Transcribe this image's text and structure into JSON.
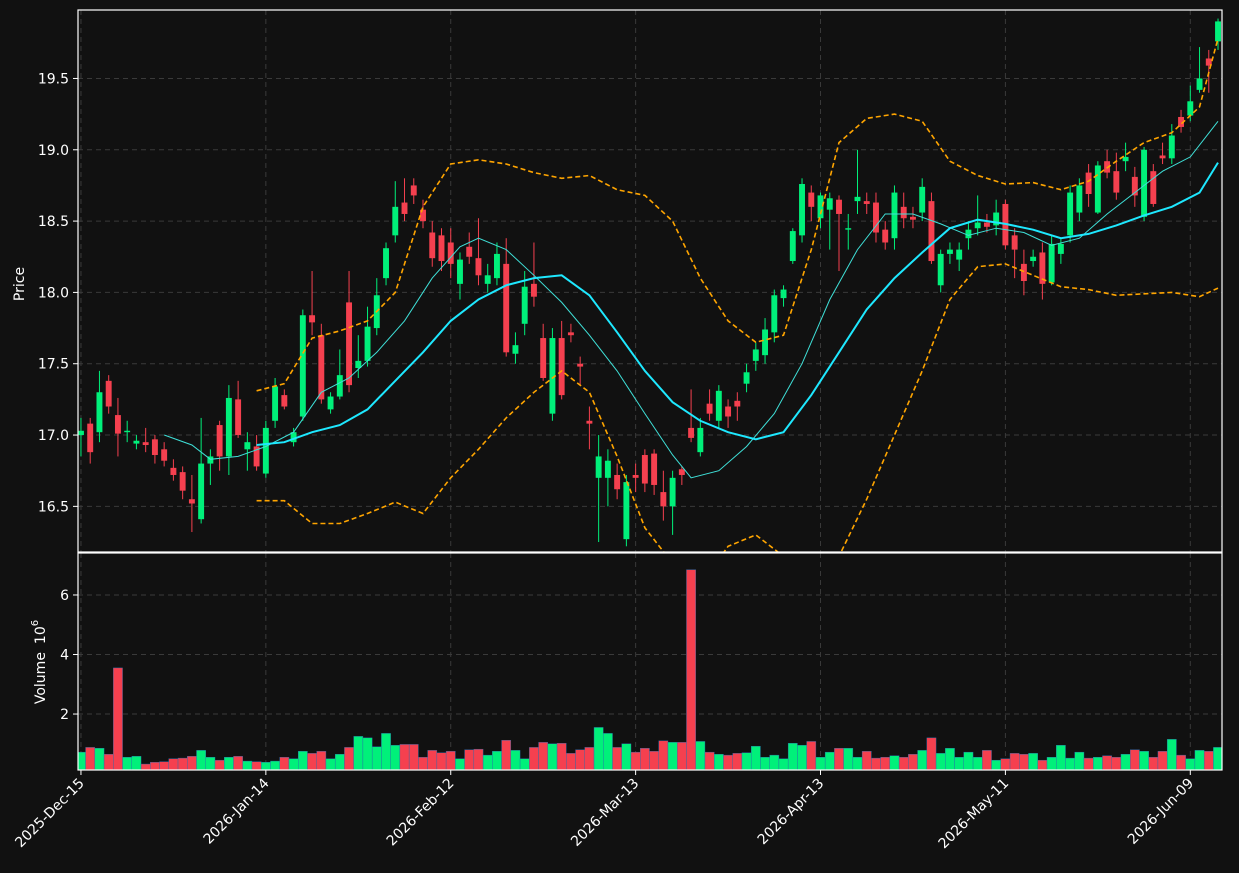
{
  "chart_data": {
    "type": "candlestick",
    "ylabel": "Price",
    "grid": true,
    "up_color": "#00f07a",
    "down_color": "#f5404f",
    "xlim": [
      -0.32,
      123.43
    ],
    "xticks": [
      {
        "value": 0,
        "label": "2025-Dec-15"
      },
      {
        "value": 20,
        "label": "2026-Jan-14"
      },
      {
        "value": 40,
        "label": "2026-Feb-12"
      },
      {
        "value": 60,
        "label": "2026-Mar-13"
      },
      {
        "value": 80,
        "label": "2026-Apr-13"
      },
      {
        "value": 100,
        "label": "2026-May-11"
      },
      {
        "value": 120,
        "label": "2026-Jun-09"
      }
    ],
    "ylim": [
      16.18,
      19.98
    ],
    "yticks": [
      16.5,
      {
        "value": 17,
        "label": "17.0"
      },
      17.5,
      {
        "value": 18,
        "label": "18.0"
      },
      18.5,
      {
        "value": 19,
        "label": "19.0"
      },
      19.5
    ],
    "candles": [
      [
        17.0,
        17.12,
        16.85,
        17.03
      ],
      [
        17.08,
        17.12,
        16.8,
        16.88
      ],
      [
        17.02,
        17.45,
        16.95,
        17.3
      ],
      [
        17.38,
        17.42,
        17.15,
        17.2
      ],
      [
        17.14,
        17.26,
        16.85,
        17.01
      ],
      [
        17.02,
        17.1,
        16.95,
        17.03
      ],
      [
        16.94,
        17.0,
        16.9,
        16.96
      ],
      [
        16.95,
        17.05,
        16.88,
        16.93
      ],
      [
        16.97,
        17.0,
        16.8,
        16.86
      ],
      [
        16.9,
        16.95,
        16.78,
        16.82
      ],
      [
        16.77,
        16.83,
        16.68,
        16.72
      ],
      [
        16.74,
        16.78,
        16.55,
        16.61
      ],
      [
        16.55,
        16.72,
        16.32,
        16.52
      ],
      [
        16.41,
        17.12,
        16.38,
        16.8
      ],
      [
        16.8,
        16.9,
        16.65,
        16.85
      ],
      [
        17.07,
        17.1,
        16.75,
        16.85
      ],
      [
        16.85,
        17.35,
        16.72,
        17.26
      ],
      [
        17.25,
        17.38,
        16.98,
        17.0
      ],
      [
        16.9,
        17.02,
        16.75,
        16.95
      ],
      [
        16.92,
        17.0,
        16.75,
        16.78
      ],
      [
        16.73,
        17.1,
        16.7,
        17.05
      ],
      [
        17.1,
        17.4,
        17.05,
        17.34
      ],
      [
        17.28,
        17.32,
        17.18,
        17.2
      ],
      [
        16.95,
        17.05,
        16.92,
        17.02
      ],
      [
        17.13,
        17.88,
        17.1,
        17.84
      ],
      [
        17.84,
        18.15,
        17.7,
        17.79
      ],
      [
        17.7,
        17.78,
        17.22,
        17.25
      ],
      [
        17.18,
        17.3,
        17.15,
        17.27
      ],
      [
        17.27,
        17.6,
        17.25,
        17.42
      ],
      [
        17.93,
        18.15,
        17.3,
        17.35
      ],
      [
        17.47,
        17.7,
        17.4,
        17.52
      ],
      [
        17.52,
        17.9,
        17.48,
        17.76
      ],
      [
        17.75,
        18.1,
        17.7,
        17.98
      ],
      [
        18.1,
        18.35,
        18.05,
        18.31
      ],
      [
        18.4,
        18.78,
        18.35,
        18.6
      ],
      [
        18.63,
        18.8,
        18.5,
        18.55
      ],
      [
        18.75,
        18.8,
        18.62,
        18.68
      ],
      [
        18.58,
        18.65,
        18.45,
        18.5
      ],
      [
        18.42,
        18.5,
        18.18,
        18.24
      ],
      [
        18.4,
        18.45,
        18.15,
        18.22
      ],
      [
        18.35,
        18.45,
        18.1,
        18.2
      ],
      [
        18.06,
        18.28,
        17.95,
        18.23
      ],
      [
        18.32,
        18.42,
        18.2,
        18.25
      ],
      [
        18.24,
        18.52,
        18.05,
        18.12
      ],
      [
        18.06,
        18.2,
        18.0,
        18.12
      ],
      [
        18.1,
        18.35,
        18.05,
        18.27
      ],
      [
        18.2,
        18.38,
        17.55,
        17.58
      ],
      [
        17.57,
        17.72,
        17.5,
        17.63
      ],
      [
        17.78,
        18.15,
        17.7,
        18.04
      ],
      [
        18.06,
        18.35,
        17.9,
        17.97
      ],
      [
        17.68,
        17.78,
        17.38,
        17.4
      ],
      [
        17.15,
        17.75,
        17.1,
        17.68
      ],
      [
        17.68,
        17.8,
        17.25,
        17.28
      ],
      [
        17.72,
        17.78,
        17.65,
        17.7
      ],
      [
        17.5,
        17.55,
        17.35,
        17.48
      ],
      [
        17.1,
        17.2,
        16.9,
        17.08
      ],
      [
        16.7,
        17.0,
        16.25,
        16.85
      ],
      [
        16.7,
        16.9,
        16.5,
        16.82
      ],
      [
        16.72,
        16.8,
        16.55,
        16.62
      ],
      [
        16.27,
        16.72,
        16.22,
        16.67
      ],
      [
        16.72,
        16.8,
        16.6,
        16.7
      ],
      [
        16.86,
        16.9,
        16.6,
        16.66
      ],
      [
        16.87,
        16.9,
        16.58,
        16.65
      ],
      [
        16.6,
        16.75,
        16.4,
        16.5
      ],
      [
        16.5,
        16.75,
        16.3,
        16.7
      ],
      [
        16.76,
        16.78,
        16.65,
        16.72
      ],
      [
        17.05,
        17.32,
        16.95,
        16.98
      ],
      [
        16.88,
        17.12,
        16.85,
        17.05
      ],
      [
        17.22,
        17.32,
        17.1,
        17.15
      ],
      [
        17.1,
        17.35,
        17.05,
        17.31
      ],
      [
        17.2,
        17.25,
        17.05,
        17.13
      ],
      [
        17.24,
        17.3,
        17.1,
        17.2
      ],
      [
        17.36,
        17.5,
        17.3,
        17.44
      ],
      [
        17.52,
        17.65,
        17.45,
        17.6
      ],
      [
        17.56,
        17.82,
        17.5,
        17.74
      ],
      [
        17.72,
        18.02,
        17.65,
        17.98
      ],
      [
        17.96,
        18.05,
        17.9,
        18.02
      ],
      [
        18.22,
        18.45,
        18.2,
        18.43
      ],
      [
        18.4,
        18.8,
        18.35,
        18.76
      ],
      [
        18.7,
        18.75,
        18.5,
        18.6
      ],
      [
        18.52,
        18.7,
        18.45,
        18.68
      ],
      [
        18.58,
        18.7,
        18.3,
        18.66
      ],
      [
        18.65,
        18.68,
        18.15,
        18.55
      ],
      [
        18.44,
        18.55,
        18.3,
        18.45
      ],
      [
        18.64,
        19.0,
        18.55,
        18.67
      ],
      [
        18.64,
        18.7,
        18.55,
        18.62
      ],
      [
        18.63,
        18.7,
        18.35,
        18.42
      ],
      [
        18.44,
        18.5,
        18.3,
        18.35
      ],
      [
        18.38,
        18.75,
        18.3,
        18.7
      ],
      [
        18.6,
        18.7,
        18.45,
        18.52
      ],
      [
        18.53,
        18.6,
        18.45,
        18.51
      ],
      [
        18.56,
        18.8,
        18.5,
        18.74
      ],
      [
        18.64,
        18.7,
        18.2,
        18.22
      ],
      [
        18.05,
        18.3,
        18.0,
        18.27
      ],
      [
        18.27,
        18.35,
        18.2,
        18.3
      ],
      [
        18.23,
        18.35,
        18.15,
        18.3
      ],
      [
        18.38,
        18.5,
        18.3,
        18.44
      ],
      [
        18.45,
        18.68,
        18.4,
        18.49
      ],
      [
        18.49,
        18.55,
        18.42,
        18.46
      ],
      [
        18.47,
        18.65,
        18.4,
        18.56
      ],
      [
        18.62,
        18.65,
        18.3,
        18.33
      ],
      [
        18.4,
        18.45,
        18.1,
        18.3
      ],
      [
        18.2,
        18.3,
        17.98,
        18.08
      ],
      [
        18.22,
        18.3,
        18.18,
        18.25
      ],
      [
        18.28,
        18.35,
        17.95,
        18.06
      ],
      [
        18.07,
        18.4,
        18.05,
        18.34
      ],
      [
        18.27,
        18.38,
        18.2,
        18.34
      ],
      [
        18.4,
        18.75,
        18.35,
        18.7
      ],
      [
        18.56,
        18.8,
        18.5,
        18.75
      ],
      [
        18.84,
        18.9,
        18.6,
        18.69
      ],
      [
        18.56,
        18.92,
        18.55,
        18.89
      ],
      [
        18.92,
        19.0,
        18.8,
        18.84
      ],
      [
        18.85,
        18.98,
        18.65,
        18.7
      ],
      [
        18.92,
        19.05,
        18.85,
        18.95
      ],
      [
        18.81,
        18.88,
        18.6,
        18.68
      ],
      [
        18.53,
        19.02,
        18.5,
        19.0
      ],
      [
        18.85,
        18.9,
        18.6,
        18.62
      ],
      [
        18.96,
        19.05,
        18.9,
        18.94
      ],
      [
        18.94,
        19.18,
        18.9,
        19.1
      ],
      [
        19.23,
        19.28,
        19.12,
        19.16
      ],
      [
        19.24,
        19.45,
        19.2,
        19.34
      ],
      [
        19.42,
        19.72,
        19.4,
        19.5
      ],
      [
        19.64,
        19.7,
        19.4,
        19.59
      ],
      [
        19.76,
        19.92,
        19.7,
        19.9
      ]
    ],
    "overlays": [
      {
        "color": "#3fe0d8",
        "width": 1,
        "dash": false,
        "x": [
          9,
          12,
          14,
          17,
          20,
          23,
          26,
          29,
          32,
          35,
          38,
          41,
          43,
          46,
          49,
          52,
          55,
          58,
          61,
          64,
          66,
          69,
          72,
          75,
          78,
          81,
          84,
          87,
          90,
          93,
          96,
          99,
          102,
          105,
          108,
          111,
          114,
          117,
          120,
          123
        ],
        "values": [
          17.0,
          16.93,
          16.83,
          16.85,
          16.92,
          17.02,
          17.3,
          17.4,
          17.58,
          17.8,
          18.1,
          18.32,
          18.38,
          18.3,
          18.12,
          17.93,
          17.7,
          17.45,
          17.15,
          16.86,
          16.7,
          16.75,
          16.92,
          17.15,
          17.5,
          17.95,
          18.3,
          18.55,
          18.55,
          18.48,
          18.4,
          18.45,
          18.42,
          18.33,
          18.38,
          18.55,
          18.7,
          18.85,
          18.95,
          19.2
        ]
      },
      {
        "color": "#1ee8ff",
        "width": 2,
        "dash": false,
        "x": [
          19,
          22,
          25,
          28,
          31,
          34,
          37,
          40,
          43,
          46,
          49,
          52,
          55,
          58,
          61,
          64,
          67,
          70,
          73,
          76,
          79,
          82,
          85,
          88,
          91,
          94,
          97,
          100,
          103,
          106,
          109,
          112,
          115,
          118,
          121,
          123
        ],
        "values": [
          16.93,
          16.95,
          17.02,
          17.07,
          17.18,
          17.38,
          17.58,
          17.8,
          17.95,
          18.05,
          18.1,
          18.12,
          17.98,
          17.72,
          17.45,
          17.23,
          17.1,
          17.02,
          16.97,
          17.02,
          17.28,
          17.58,
          17.88,
          18.1,
          18.28,
          18.45,
          18.51,
          18.48,
          18.44,
          18.38,
          18.41,
          18.47,
          18.54,
          18.6,
          18.7,
          18.91
        ]
      },
      {
        "color": "#ffa500",
        "width": 1.6,
        "dash": true,
        "x": [
          19,
          22,
          25,
          28,
          31,
          34,
          37,
          40,
          43,
          46,
          49,
          52,
          55,
          58,
          61,
          64,
          67,
          70,
          73,
          76,
          79,
          82,
          85,
          88,
          91,
          94,
          97,
          100,
          103,
          106,
          109,
          112,
          115,
          118,
          121,
          123
        ],
        "values": [
          17.31,
          17.36,
          17.68,
          17.73,
          17.8,
          18.0,
          18.6,
          18.9,
          18.93,
          18.9,
          18.84,
          18.8,
          18.82,
          18.72,
          18.68,
          18.5,
          18.1,
          17.8,
          17.65,
          17.7,
          18.3,
          19.05,
          19.22,
          19.25,
          19.2,
          18.92,
          18.82,
          18.76,
          18.77,
          18.72,
          18.78,
          18.92,
          19.05,
          19.12,
          19.3,
          19.78
        ]
      },
      {
        "color": "#ffa500",
        "width": 1.6,
        "dash": true,
        "x": [
          19,
          22,
          25,
          28,
          31,
          34,
          37,
          40,
          43,
          46,
          49,
          52,
          55,
          58,
          61,
          64,
          67,
          70,
          73,
          76,
          79,
          82,
          85,
          88,
          91,
          94,
          97,
          100,
          103,
          106,
          109,
          112,
          115,
          118,
          121,
          123
        ],
        "values": [
          16.54,
          16.54,
          16.38,
          16.38,
          16.45,
          16.53,
          16.45,
          16.7,
          16.9,
          17.12,
          17.3,
          17.45,
          17.3,
          16.85,
          16.35,
          16.1,
          15.95,
          16.22,
          16.3,
          16.15,
          15.95,
          16.15,
          16.55,
          17.0,
          17.45,
          17.95,
          18.18,
          18.2,
          18.12,
          18.04,
          18.02,
          17.98,
          17.99,
          18.0,
          17.97,
          18.03
        ]
      }
    ],
    "volume": {
      "ylabel": "Volume",
      "scale_base": "10",
      "scale_exponent": "6",
      "ylim": [
        0.12,
        7.41
      ],
      "yticks": [
        2,
        4,
        6
      ],
      "values": [
        0.72,
        0.88,
        0.85,
        0.65,
        3.55,
        0.55,
        0.58,
        0.32,
        0.38,
        0.4,
        0.5,
        0.52,
        0.58,
        0.78,
        0.55,
        0.45,
        0.55,
        0.58,
        0.42,
        0.4,
        0.38,
        0.42,
        0.55,
        0.5,
        0.75,
        0.68,
        0.75,
        0.5,
        0.65,
        0.88,
        1.25,
        1.2,
        0.9,
        1.35,
        0.95,
        0.98,
        0.98,
        0.55,
        0.78,
        0.7,
        0.75,
        0.5,
        0.8,
        0.82,
        0.62,
        0.75,
        1.12,
        0.78,
        0.5,
        0.88,
        1.05,
        1.0,
        1.02,
        0.68,
        0.8,
        0.88,
        1.55,
        1.35,
        0.88,
        1.0,
        0.72,
        0.85,
        0.75,
        1.1,
        1.05,
        1.05,
        6.85,
        1.08,
        0.72,
        0.65,
        0.62,
        0.68,
        0.7,
        0.92,
        0.55,
        0.62,
        0.5,
        1.02,
        0.95,
        1.08,
        0.55,
        0.72,
        0.85,
        0.85,
        0.55,
        0.75,
        0.52,
        0.55,
        0.6,
        0.55,
        0.65,
        0.78,
        1.2,
        0.68,
        0.85,
        0.55,
        0.72,
        0.55,
        0.78,
        0.45,
        0.5,
        0.68,
        0.65,
        0.68,
        0.45,
        0.55,
        0.95,
        0.52,
        0.72,
        0.52,
        0.55,
        0.6,
        0.55,
        0.65,
        0.8,
        0.75,
        0.55,
        0.75,
        1.15,
        0.62,
        0.5,
        0.78,
        0.75,
        0.88
      ]
    }
  }
}
